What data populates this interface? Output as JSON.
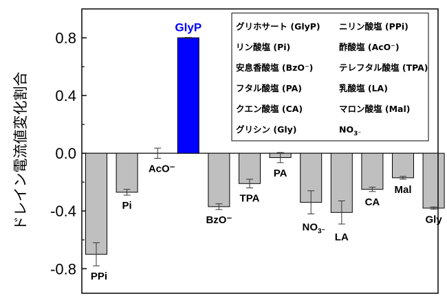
{
  "chart_data": {
    "type": "bar",
    "ylabel": "ドレイン電流値変化割合",
    "xlabel": "",
    "ylim": [
      -0.97,
      1.0
    ],
    "yticks": [
      -0.8,
      -0.4,
      0.0,
      0.4,
      0.8
    ],
    "ytick_labels": [
      "-0.8",
      "-0.4",
      "0.0",
      "0.4",
      "0.8"
    ],
    "grid": false,
    "legend_position": "top-right",
    "highlight_color": "#0000ff",
    "bar_color": "#bfbfbf",
    "categories": [
      {
        "label": "PPi",
        "sub": "",
        "value": -0.7,
        "err": 0.08,
        "highlight": false
      },
      {
        "label": "Pi",
        "sub": "",
        "value": -0.27,
        "err": 0.02,
        "highlight": false
      },
      {
        "label": "AcO⁻",
        "sub": "",
        "value": 0.0,
        "err": 0.035,
        "highlight": false
      },
      {
        "label": "GlyP",
        "sub": "",
        "value": 0.8,
        "err": 0.003,
        "highlight": true
      },
      {
        "label": "BzO⁻",
        "sub": "",
        "value": -0.37,
        "err": 0.02,
        "highlight": false
      },
      {
        "label": "TPA",
        "sub": "",
        "value": -0.21,
        "err": 0.03,
        "highlight": false
      },
      {
        "label": "PA",
        "sub": "",
        "value": -0.03,
        "err": 0.035,
        "highlight": false
      },
      {
        "label": "NO",
        "sub": "3⁻",
        "value": -0.34,
        "err": 0.08,
        "highlight": false
      },
      {
        "label": "LA",
        "sub": "",
        "value": -0.41,
        "err": 0.08,
        "highlight": false
      },
      {
        "label": "CA",
        "sub": "",
        "value": -0.25,
        "err": 0.015,
        "highlight": false
      },
      {
        "label": "Mal",
        "sub": "",
        "value": -0.17,
        "err": 0.01,
        "highlight": false
      },
      {
        "label": "Gly",
        "sub": "",
        "value": -0.38,
        "err": 0.008,
        "highlight": false
      }
    ],
    "legend": [
      {
        "text": "グリホサート (GlyP)",
        "highlight": true
      },
      {
        "text": "ニリン酸塩 (PPi)",
        "highlight": false
      },
      {
        "text": "リン酸塩 (Pi)",
        "highlight": false
      },
      {
        "text": "酢酸塩 (AcO⁻)",
        "highlight": false
      },
      {
        "text": "安息香酸塩 (BzO⁻)",
        "highlight": false
      },
      {
        "text": "テレフタル酸塩 (TPA)",
        "highlight": false
      },
      {
        "text": "フタル酸塩 (PA)",
        "highlight": false
      },
      {
        "text": "乳酸塩 (LA)",
        "highlight": false
      },
      {
        "text": "クエン酸塩 (CA)",
        "highlight": false
      },
      {
        "text": "マロン酸塩 (Mal)",
        "highlight": false
      },
      {
        "text": "グリシン (Gly)",
        "highlight": false
      },
      {
        "text": "NO",
        "sub": "3⁻",
        "highlight": false
      }
    ]
  }
}
